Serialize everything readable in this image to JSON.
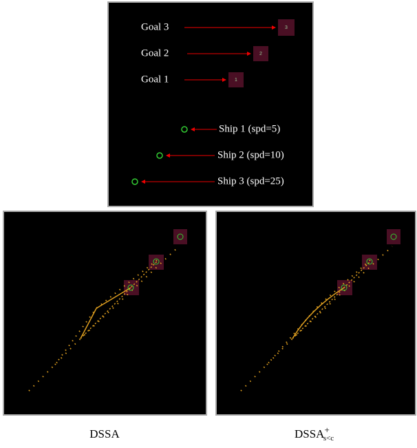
{
  "legend_panel": {
    "goals": [
      {
        "label": "Goal 3",
        "id": "3"
      },
      {
        "label": "Goal 2",
        "id": "2"
      },
      {
        "label": "Goal 1",
        "id": "1"
      }
    ],
    "ships": [
      "Ship 1 (spd=5)",
      "Ship 2 (spd=10)",
      "Ship 3 (spd=25)"
    ]
  },
  "captions": [
    {
      "base": "DSSA"
    },
    {
      "base": "DSSA",
      "sup": "+",
      "sub": "s<c"
    }
  ]
}
